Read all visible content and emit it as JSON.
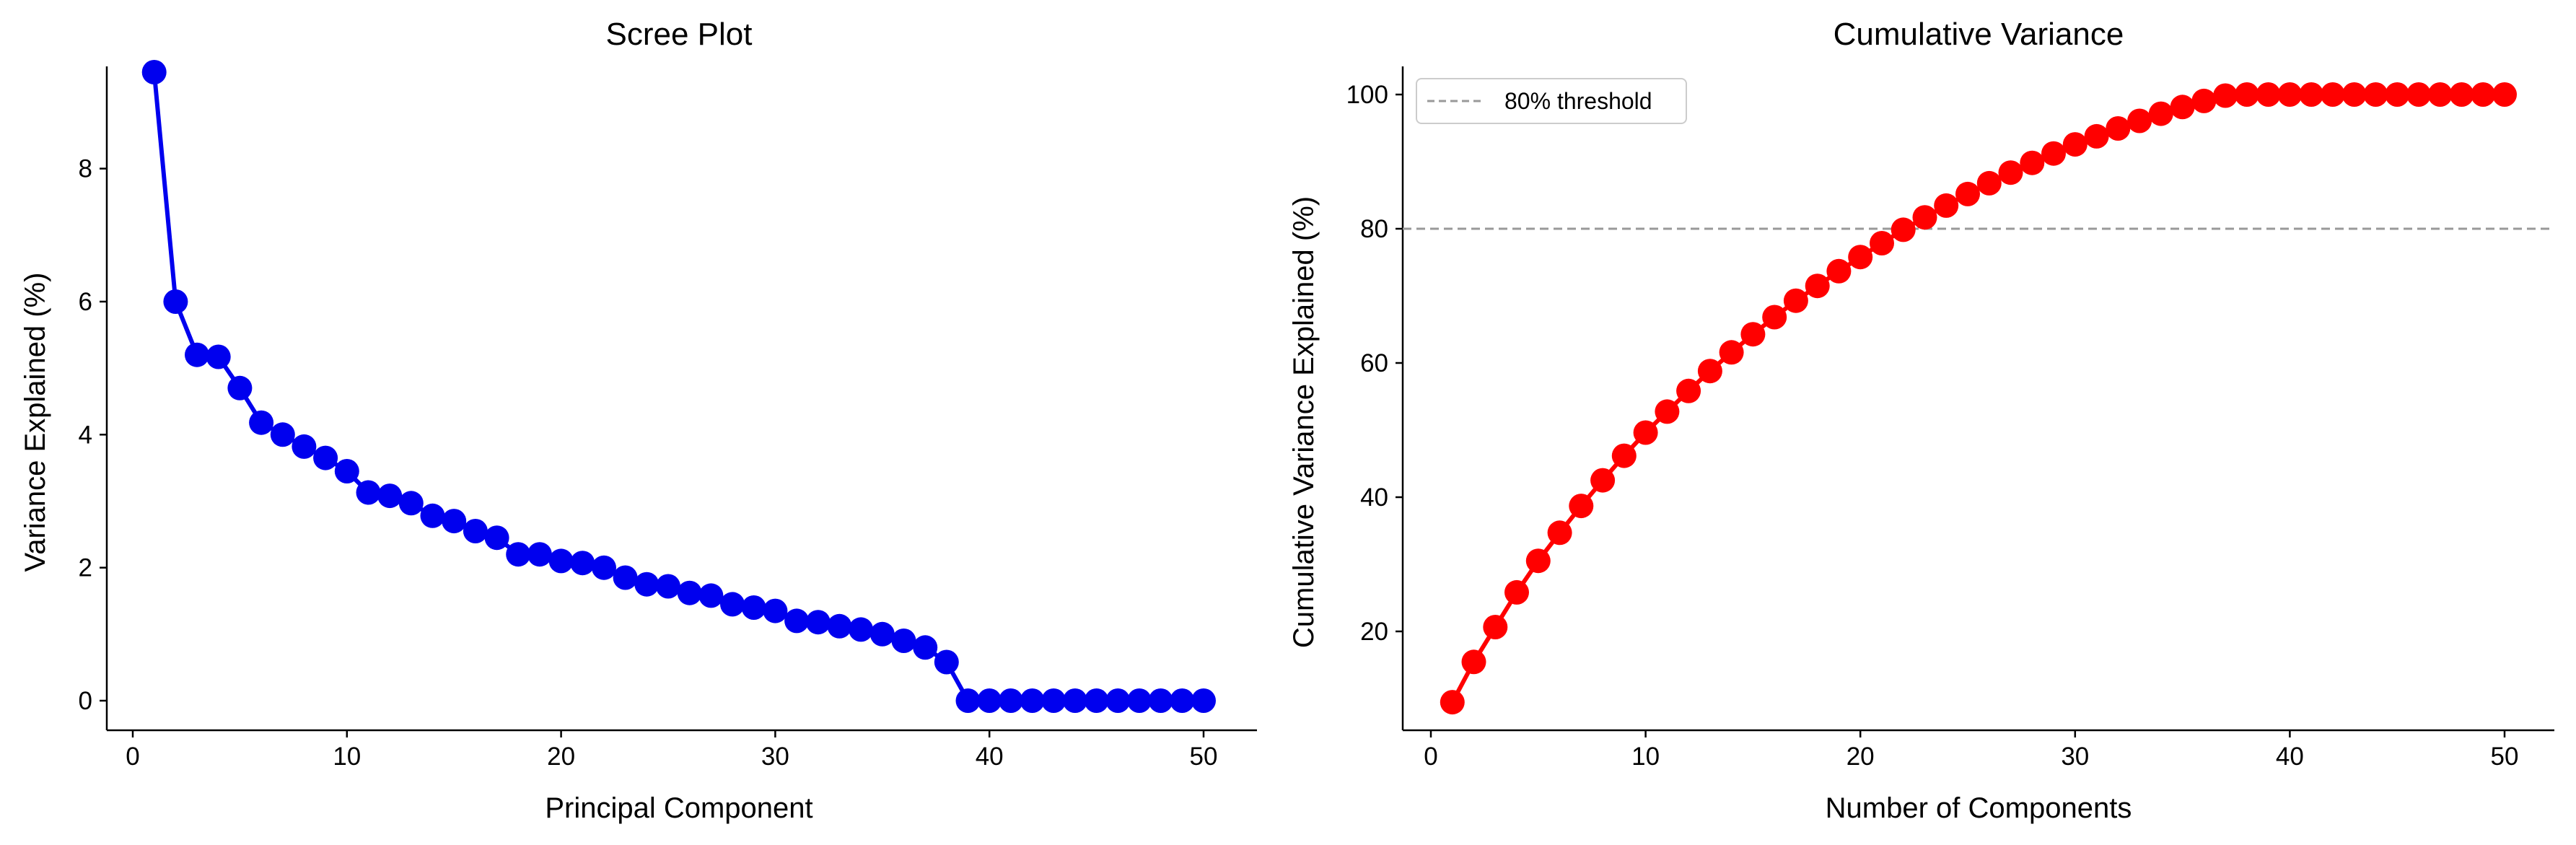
{
  "chart_data": [
    {
      "type": "line",
      "title": "Scree Plot",
      "xlabel": "Principal Component",
      "ylabel": "Variance Explained (%)",
      "xlim": [
        0,
        52
      ],
      "ylim": [
        0,
        10
      ],
      "xticks": [
        "0",
        "10",
        "20",
        "30",
        "40",
        "50"
      ],
      "yticks": [
        "0",
        "2",
        "4",
        "6",
        "8"
      ],
      "grid": false,
      "marker": "circle",
      "color": "#0000ee",
      "x": [
        1,
        2,
        3,
        4,
        5,
        6,
        7,
        8,
        9,
        10,
        11,
        12,
        13,
        14,
        15,
        16,
        17,
        18,
        19,
        20,
        21,
        22,
        23,
        24,
        25,
        26,
        27,
        28,
        29,
        30,
        31,
        32,
        33,
        34,
        35,
        36,
        37,
        38,
        39,
        40,
        41,
        42,
        43,
        44,
        45,
        46,
        47,
        48,
        49,
        50
      ],
      "values": [
        9.45,
        6.0,
        5.2,
        5.17,
        4.7,
        4.18,
        4.0,
        3.82,
        3.65,
        3.45,
        3.13,
        3.08,
        2.97,
        2.78,
        2.7,
        2.55,
        2.45,
        2.2,
        2.2,
        2.1,
        2.07,
        2.0,
        1.85,
        1.75,
        1.72,
        1.62,
        1.58,
        1.45,
        1.4,
        1.35,
        1.2,
        1.18,
        1.12,
        1.07,
        1.0,
        0.9,
        0.8,
        0.58,
        0.0,
        0.0,
        0.0,
        0.0,
        0.0,
        0.0,
        0.0,
        0.0,
        0.0,
        0.0,
        0.0,
        0.0
      ]
    },
    {
      "type": "line",
      "title": "Cumulative Variance",
      "xlabel": "Number of Components",
      "ylabel": "Cumulative Variance Explained (%)",
      "xlim": [
        0,
        52
      ],
      "ylim": [
        5,
        105
      ],
      "xticks": [
        "0",
        "10",
        "20",
        "30",
        "40",
        "50"
      ],
      "yticks": [
        "20",
        "40",
        "60",
        "80",
        "100"
      ],
      "grid": false,
      "marker": "circle",
      "color": "#ff0000",
      "x": [
        1,
        2,
        3,
        4,
        5,
        6,
        7,
        8,
        9,
        10,
        11,
        12,
        13,
        14,
        15,
        16,
        17,
        18,
        19,
        20,
        21,
        22,
        23,
        24,
        25,
        26,
        27,
        28,
        29,
        30,
        31,
        32,
        33,
        34,
        35,
        36,
        37,
        38,
        39,
        40,
        41,
        42,
        43,
        44,
        45,
        46,
        47,
        48,
        49,
        50
      ],
      "values": [
        9.45,
        15.45,
        20.65,
        25.82,
        30.52,
        34.7,
        38.7,
        42.52,
        46.17,
        49.62,
        52.75,
        55.83,
        58.8,
        61.58,
        64.28,
        66.83,
        69.28,
        71.48,
        73.68,
        75.78,
        77.85,
        79.85,
        81.7,
        83.45,
        85.17,
        86.79,
        88.37,
        89.82,
        91.22,
        92.57,
        93.77,
        94.95,
        96.07,
        97.14,
        98.14,
        99.04,
        99.84,
        100.0,
        100.0,
        100.0,
        100.0,
        100.0,
        100.0,
        100.0,
        100.0,
        100.0,
        100.0,
        100.0,
        100.0,
        100.0
      ],
      "reference_line": {
        "y": 80,
        "style": "dashed",
        "color": "#999999",
        "label": "80% threshold"
      },
      "legend": {
        "position": "upper-left",
        "entries": [
          "80% threshold"
        ]
      }
    }
  ]
}
